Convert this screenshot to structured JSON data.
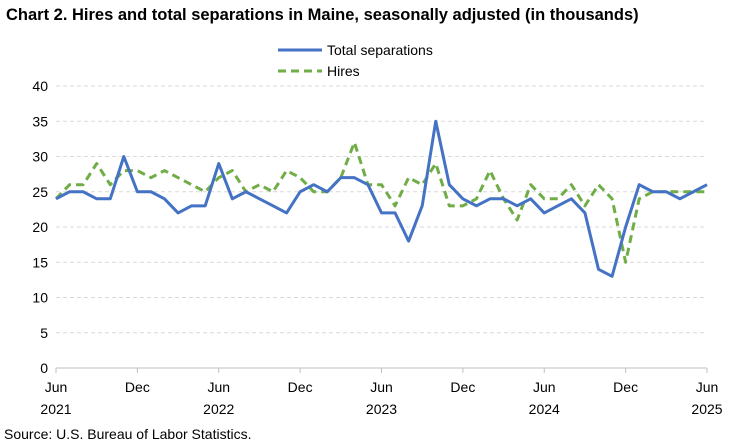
{
  "chart_data": {
    "type": "line",
    "title": "Chart 2. Hires and total separations in Maine, seasonally adjusted (in thousands)",
    "source": "Source: U.S. Bureau of Labor Statistics.",
    "xlabel": "",
    "ylabel": "",
    "ylim": [
      0,
      40
    ],
    "yticks": [
      0,
      5,
      10,
      15,
      20,
      25,
      30,
      35,
      40
    ],
    "grid": true,
    "legend_position": "top-center",
    "x": [
      "Jun 2021",
      "Jul 2021",
      "Aug 2021",
      "Sep 2021",
      "Oct 2021",
      "Nov 2021",
      "Dec 2021",
      "Jan 2022",
      "Feb 2022",
      "Mar 2022",
      "Apr 2022",
      "May 2022",
      "Jun 2022",
      "Jul 2022",
      "Aug 2022",
      "Sep 2022",
      "Oct 2022",
      "Nov 2022",
      "Dec 2022",
      "Jan 2023",
      "Feb 2023",
      "Mar 2023",
      "Apr 2023",
      "May 2023",
      "Jun 2023",
      "Jul 2023",
      "Aug 2023",
      "Sep 2023",
      "Oct 2023",
      "Nov 2023",
      "Dec 2023",
      "Jan 2024",
      "Feb 2024",
      "Mar 2024",
      "Apr 2024",
      "May 2024",
      "Jun 2024",
      "Jul 2024",
      "Aug 2024",
      "Sep 2024",
      "Oct 2024",
      "Nov 2024",
      "Dec 2024",
      "Jan 2025",
      "Feb 2025",
      "Mar 2025",
      "Apr 2025",
      "May 2025",
      "Jun 2025"
    ],
    "x_tick_labels": [
      {
        "index": 0,
        "month": "Jun",
        "year": "2021"
      },
      {
        "index": 6,
        "month": "Dec",
        "year": ""
      },
      {
        "index": 12,
        "month": "Jun",
        "year": "2022"
      },
      {
        "index": 18,
        "month": "Dec",
        "year": ""
      },
      {
        "index": 24,
        "month": "Jun",
        "year": "2023"
      },
      {
        "index": 30,
        "month": "Dec",
        "year": ""
      },
      {
        "index": 36,
        "month": "Jun",
        "year": "2024"
      },
      {
        "index": 42,
        "month": "Dec",
        "year": ""
      },
      {
        "index": 48,
        "month": "Jun",
        "year": "2025"
      }
    ],
    "series": [
      {
        "name": "Total separations",
        "color": "#4472c4",
        "dash": "solid",
        "values": [
          24,
          25,
          25,
          24,
          24,
          30,
          25,
          25,
          24,
          22,
          23,
          23,
          29,
          24,
          25,
          24,
          23,
          22,
          25,
          26,
          25,
          27,
          27,
          26,
          22,
          22,
          18,
          23,
          35,
          26,
          24,
          23,
          24,
          24,
          23,
          24,
          22,
          23,
          24,
          22,
          14,
          13,
          20,
          26,
          25,
          25,
          24,
          25,
          26
        ]
      },
      {
        "name": "Hires",
        "color": "#70ad47",
        "dash": "dashed",
        "values": [
          24,
          26,
          26,
          29,
          26,
          28,
          28,
          27,
          28,
          27,
          26,
          25,
          27,
          28,
          25,
          26,
          25,
          28,
          27,
          25,
          25,
          27,
          32,
          26,
          26,
          23,
          27,
          26,
          29,
          23,
          23,
          24,
          28,
          24,
          21,
          26,
          24,
          24,
          26,
          23,
          26,
          24,
          15,
          24,
          25,
          25,
          25,
          25,
          25
        ]
      }
    ]
  }
}
